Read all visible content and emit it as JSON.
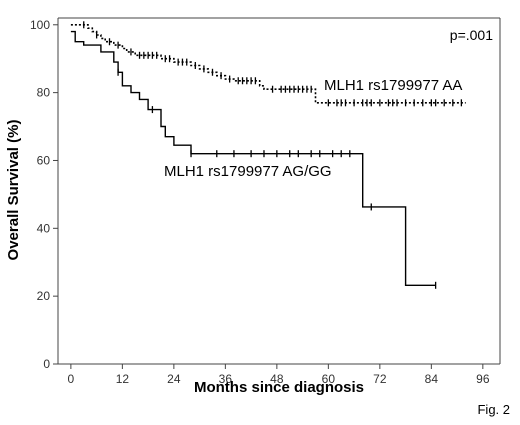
{
  "chart_data": {
    "type": "line",
    "xlabel": "Months since diagnosis",
    "ylabel": "Overall Survival (%)",
    "xlim": [
      -3,
      100
    ],
    "ylim": [
      0,
      102
    ],
    "x_ticks": [
      0,
      12,
      24,
      36,
      48,
      60,
      72,
      84,
      96
    ],
    "y_ticks": [
      0,
      20,
      40,
      60,
      80,
      100
    ],
    "grid": false,
    "p_value": "p=.001",
    "figure_label": "Fig. 2",
    "series": [
      {
        "name": "MLH1 rs1799977 AA",
        "style": "dotted",
        "step_points": [
          [
            0,
            100
          ],
          [
            4,
            100
          ],
          [
            4,
            99
          ],
          [
            5,
            99
          ],
          [
            5,
            98
          ],
          [
            6,
            98
          ],
          [
            6,
            97
          ],
          [
            7,
            97
          ],
          [
            7,
            96
          ],
          [
            8,
            96
          ],
          [
            8,
            95
          ],
          [
            10,
            95
          ],
          [
            10,
            94
          ],
          [
            12,
            94
          ],
          [
            12,
            93
          ],
          [
            13,
            93
          ],
          [
            13,
            92
          ],
          [
            15,
            92
          ],
          [
            15,
            91
          ],
          [
            21,
            91
          ],
          [
            21,
            90
          ],
          [
            24,
            90
          ],
          [
            24,
            89
          ],
          [
            28,
            89
          ],
          [
            28,
            88
          ],
          [
            30,
            88
          ],
          [
            30,
            87
          ],
          [
            32,
            87
          ],
          [
            32,
            86
          ],
          [
            34,
            86
          ],
          [
            34,
            85
          ],
          [
            36,
            85
          ],
          [
            36,
            84
          ],
          [
            38,
            84
          ],
          [
            38,
            83.5
          ],
          [
            44,
            83.5
          ],
          [
            44,
            82
          ],
          [
            45,
            82
          ],
          [
            45,
            81
          ],
          [
            57,
            81
          ],
          [
            57,
            77
          ],
          [
            92,
            77
          ]
        ],
        "censor_x": [
          3,
          6,
          9,
          11,
          14,
          16,
          17,
          18,
          19,
          20,
          22,
          23,
          25,
          26,
          27,
          29,
          31,
          33,
          35,
          37,
          39,
          40,
          41,
          42,
          43,
          47,
          49,
          50,
          51,
          52,
          53,
          54,
          55,
          56,
          60,
          62,
          63,
          64,
          66,
          68,
          69,
          70,
          72,
          74,
          75,
          76,
          78,
          80,
          82,
          84,
          85,
          87,
          89,
          91
        ]
      },
      {
        "name": "MLH1 rs1799977 AG/GG",
        "style": "solid",
        "step_points": [
          [
            0,
            98
          ],
          [
            1,
            98
          ],
          [
            1,
            95
          ],
          [
            3,
            95
          ],
          [
            3,
            94
          ],
          [
            7,
            94
          ],
          [
            7,
            92
          ],
          [
            10,
            92
          ],
          [
            10,
            89
          ],
          [
            11,
            89
          ],
          [
            11,
            86
          ],
          [
            12,
            86
          ],
          [
            12,
            82
          ],
          [
            14,
            82
          ],
          [
            14,
            80
          ],
          [
            16,
            80
          ],
          [
            16,
            78
          ],
          [
            18,
            78
          ],
          [
            18,
            75
          ],
          [
            21,
            75
          ],
          [
            21,
            70
          ],
          [
            22,
            70
          ],
          [
            22,
            67
          ],
          [
            24,
            67
          ],
          [
            24,
            64.5
          ],
          [
            28,
            64.5
          ],
          [
            28,
            62
          ],
          [
            68,
            62
          ],
          [
            68,
            46.3
          ],
          [
            78,
            46.3
          ],
          [
            78,
            23.2
          ],
          [
            85,
            23.2
          ]
        ],
        "censor_x": [
          11,
          19,
          28,
          34,
          38,
          42,
          45,
          48,
          51,
          53,
          56,
          58,
          61,
          63,
          65,
          70,
          85
        ]
      }
    ]
  }
}
